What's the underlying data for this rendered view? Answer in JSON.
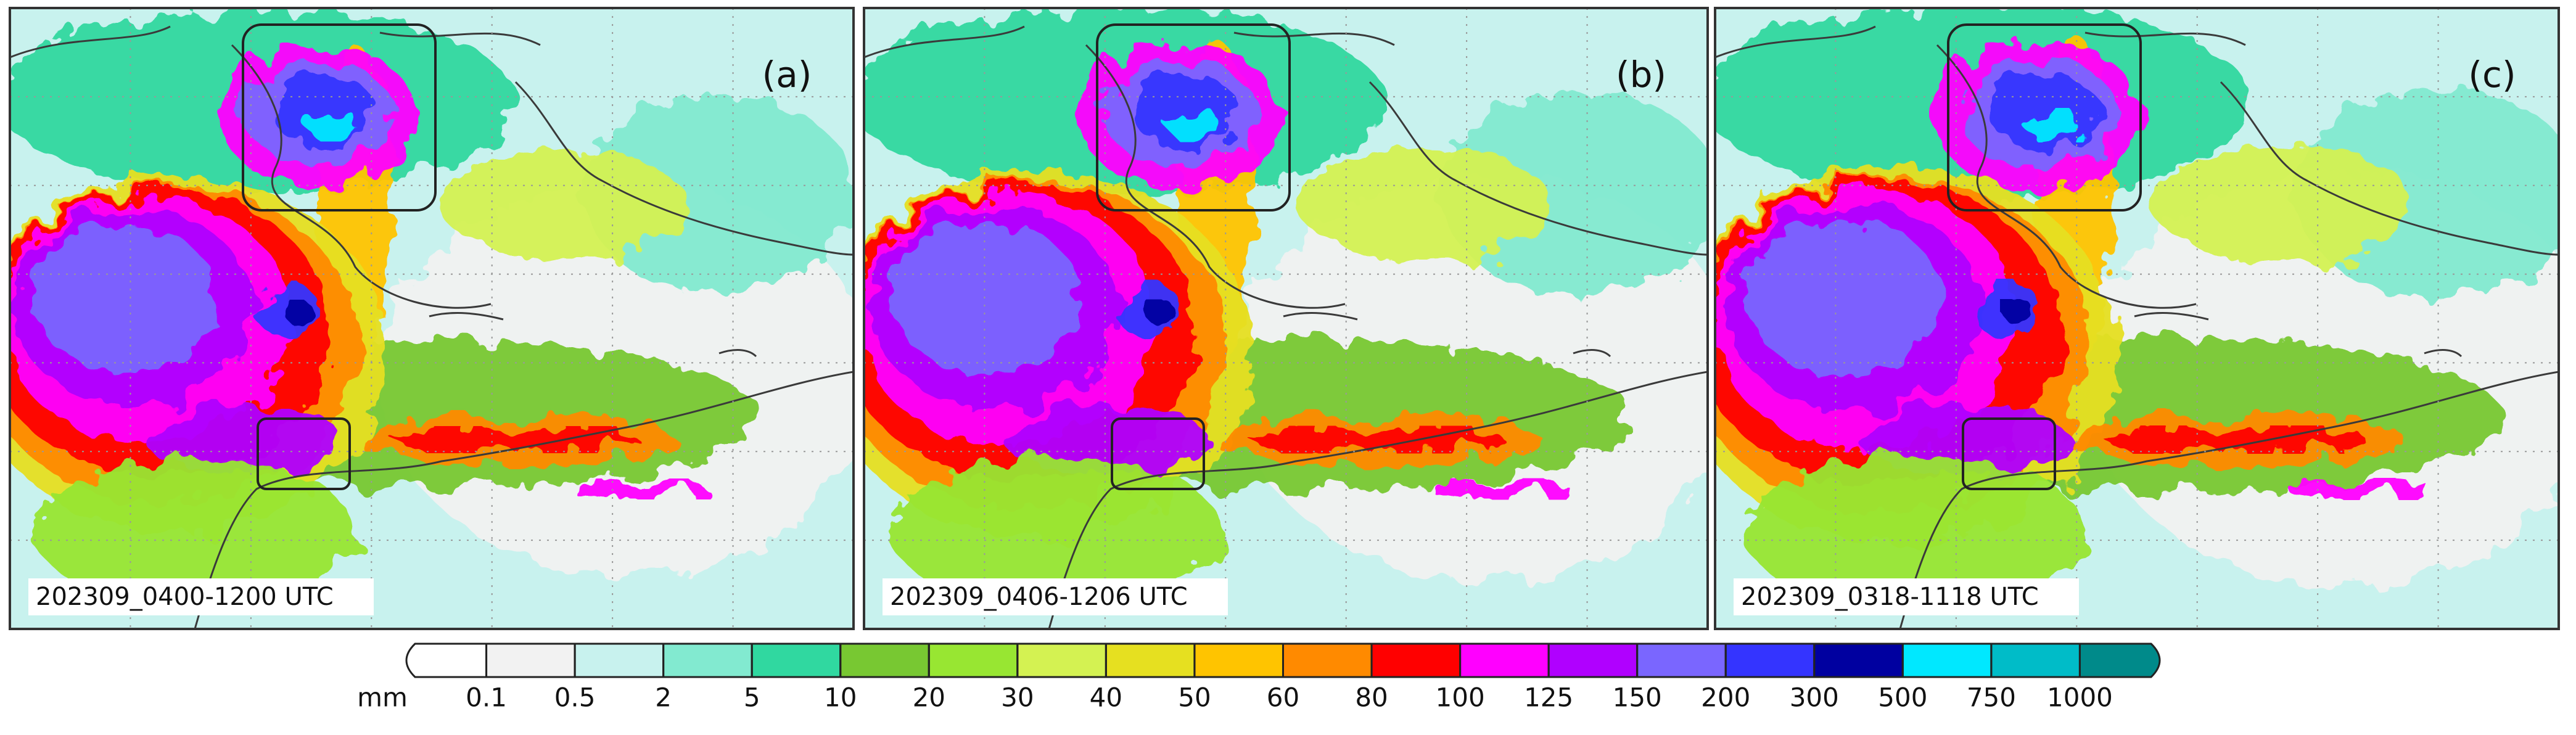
{
  "panels": [
    {
      "label": "(a)",
      "period": "202309_0400-1200 UTC"
    },
    {
      "label": "(b)",
      "period": "202309_0406-1206 UTC"
    },
    {
      "label": "(c)",
      "period": "202309_0318-1118 UTC"
    }
  ],
  "colorbar": {
    "unit": "mm",
    "ticks": [
      0.1,
      0.5,
      2,
      5,
      10,
      20,
      30,
      40,
      50,
      60,
      80,
      100,
      125,
      150,
      200,
      300,
      500,
      750,
      1000
    ],
    "colors": [
      "#ffffff",
      "#f2f2f2",
      "#c8f2ee",
      "#82ead0",
      "#30d8a0",
      "#78c832",
      "#98e632",
      "#d4f252",
      "#e6e020",
      "#ffc400",
      "#ff8a00",
      "#ff0000",
      "#ff00ff",
      "#b000ff",
      "#7a66ff",
      "#3434ff",
      "#0000a0",
      "#00e8ff",
      "#00bcc8",
      "#008a8a"
    ]
  }
}
